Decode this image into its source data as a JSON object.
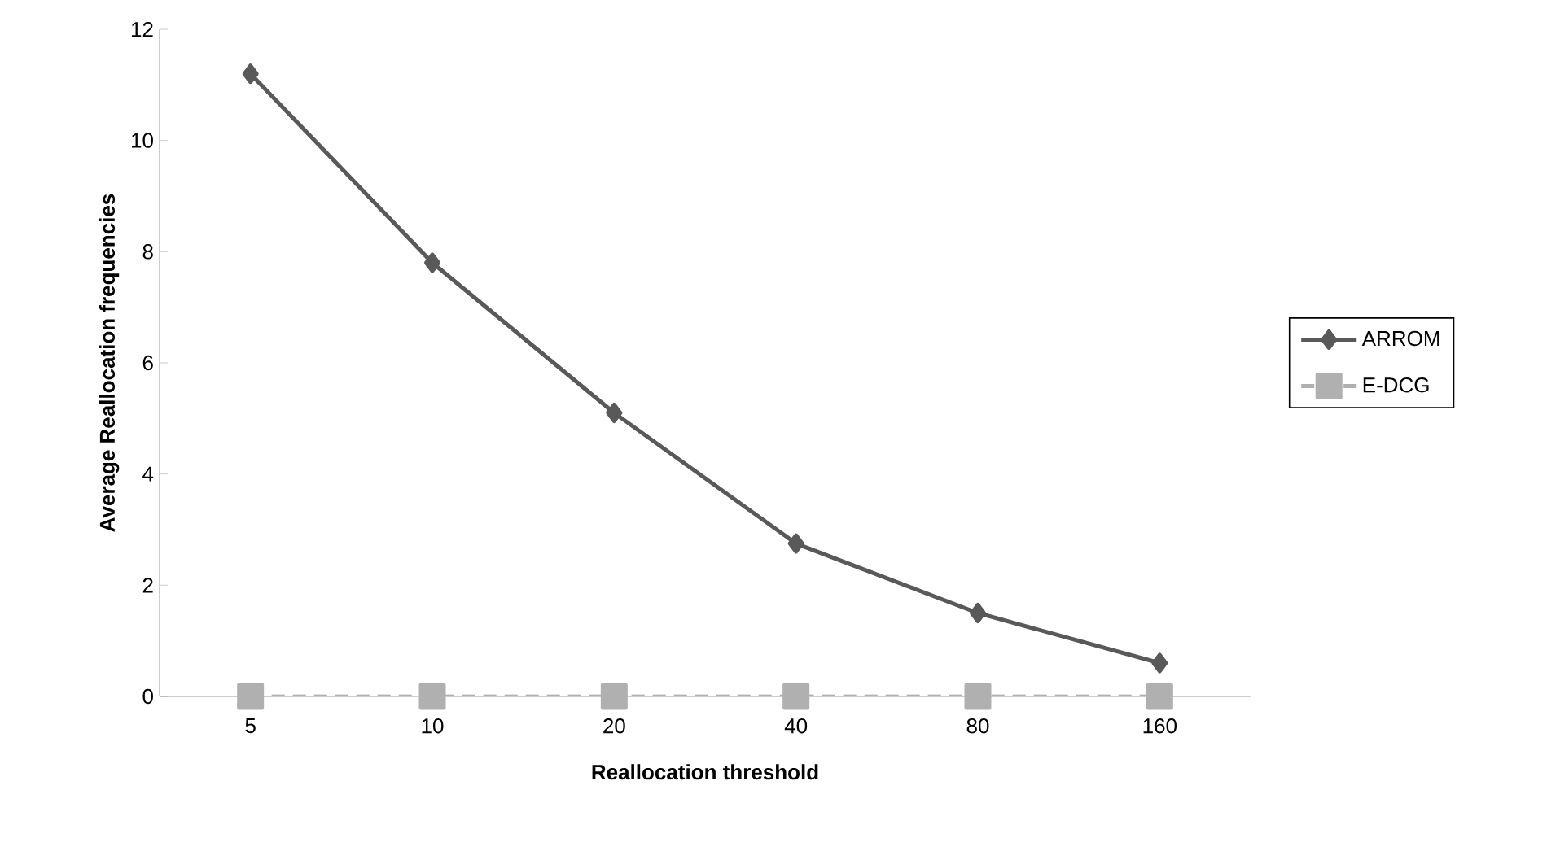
{
  "chart_data": {
    "type": "line",
    "xlabel": "Reallocation threshold",
    "ylabel": "Average Reallocation frequencies",
    "categories": [
      "5",
      "10",
      "20",
      "40",
      "80",
      "160"
    ],
    "series": [
      {
        "name": "ARROM",
        "color": "#595959",
        "values": [
          11.2,
          7.8,
          5.1,
          2.75,
          1.5,
          0.6
        ],
        "marker": "diamond",
        "line_style": "solid"
      },
      {
        "name": "E-DCG",
        "color": "#b0b0b0",
        "values": [
          0,
          0,
          0,
          0,
          0,
          0
        ],
        "marker": "square",
        "line_style": "dashed"
      }
    ],
    "ylim": [
      0,
      12
    ],
    "yticks": [
      0,
      2,
      4,
      6,
      8,
      10,
      12
    ],
    "grid": false,
    "legend": "right"
  }
}
